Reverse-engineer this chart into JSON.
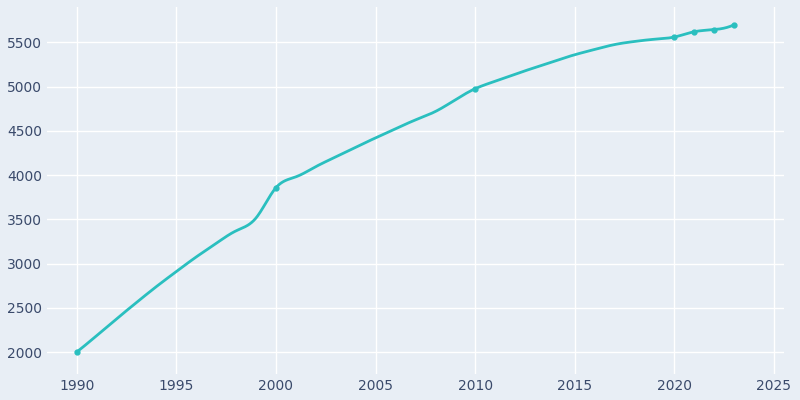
{
  "years": [
    1990,
    1991,
    1992,
    1993,
    1994,
    1995,
    1996,
    1997,
    1998,
    1999,
    2000,
    2001,
    2002,
    2003,
    2004,
    2005,
    2006,
    2007,
    2008,
    2009,
    2010,
    2011,
    2012,
    2013,
    2014,
    2015,
    2016,
    2017,
    2018,
    2019,
    2020,
    2021,
    2022,
    2023
  ],
  "population": [
    2000,
    2185,
    2375,
    2560,
    2740,
    2910,
    3075,
    3228,
    3370,
    3515,
    3857,
    3980,
    4095,
    4205,
    4315,
    4420,
    4523,
    4623,
    4718,
    4850,
    4976,
    5060,
    5140,
    5215,
    5290,
    5360,
    5420,
    5475,
    5510,
    5535,
    5560,
    5620,
    5644,
    5699
  ],
  "marker_years": [
    1990,
    2000,
    2010,
    2020,
    2021,
    2022,
    2023
  ],
  "marker_population": [
    2000,
    3857,
    4976,
    5560,
    5620,
    5644,
    5699
  ],
  "line_color": "#2abfbf",
  "marker_style": "o",
  "marker_size": 3.5,
  "background_color": "#e8eef5",
  "figure_background": "#e8eef5",
  "xlim": [
    1988.5,
    2025.5
  ],
  "ylim": [
    1750,
    5900
  ],
  "xticks": [
    1990,
    1995,
    2000,
    2005,
    2010,
    2015,
    2020,
    2025
  ],
  "yticks": [
    2000,
    2500,
    3000,
    3500,
    4000,
    4500,
    5000,
    5500
  ],
  "grid_color": "#ffffff",
  "tick_color": "#3a4a6b",
  "line_width": 2.0
}
